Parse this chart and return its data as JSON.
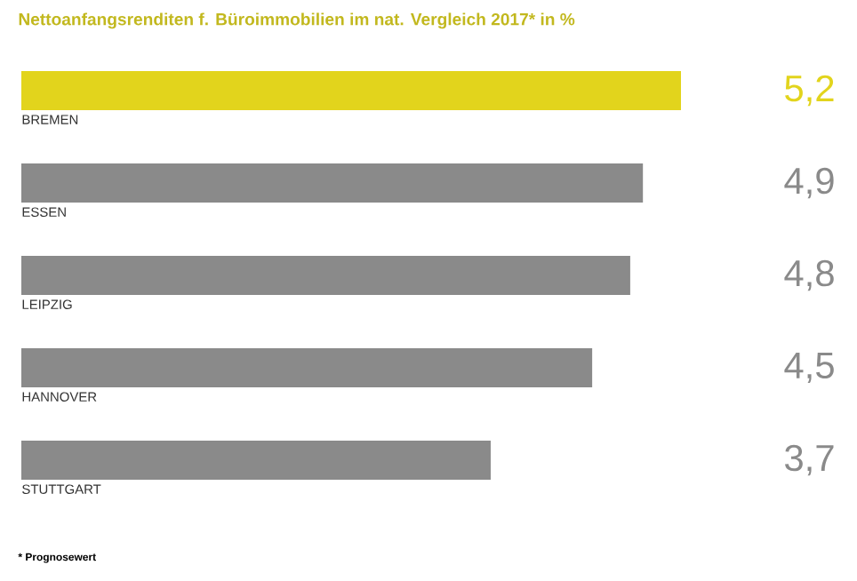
{
  "chart_data": {
    "type": "bar",
    "orientation": "horizontal",
    "title": "Nettoanfangsrenditen f. Büroimmobilien im nat. Vergleich 2017* in %",
    "categories": [
      "BREMEN",
      "ESSEN",
      "LEIPZIG",
      "HANNOVER",
      "STUTTGART"
    ],
    "values": [
      5.2,
      4.9,
      4.8,
      4.5,
      3.7
    ],
    "value_labels": [
      "5,2",
      "4,9",
      "4,8",
      "4,5",
      "3,7"
    ],
    "colors": [
      "#e2d41c",
      "#8a8a8a",
      "#8a8a8a",
      "#8a8a8a",
      "#8a8a8a"
    ],
    "annotations": [
      "* Prognosewert"
    ]
  }
}
